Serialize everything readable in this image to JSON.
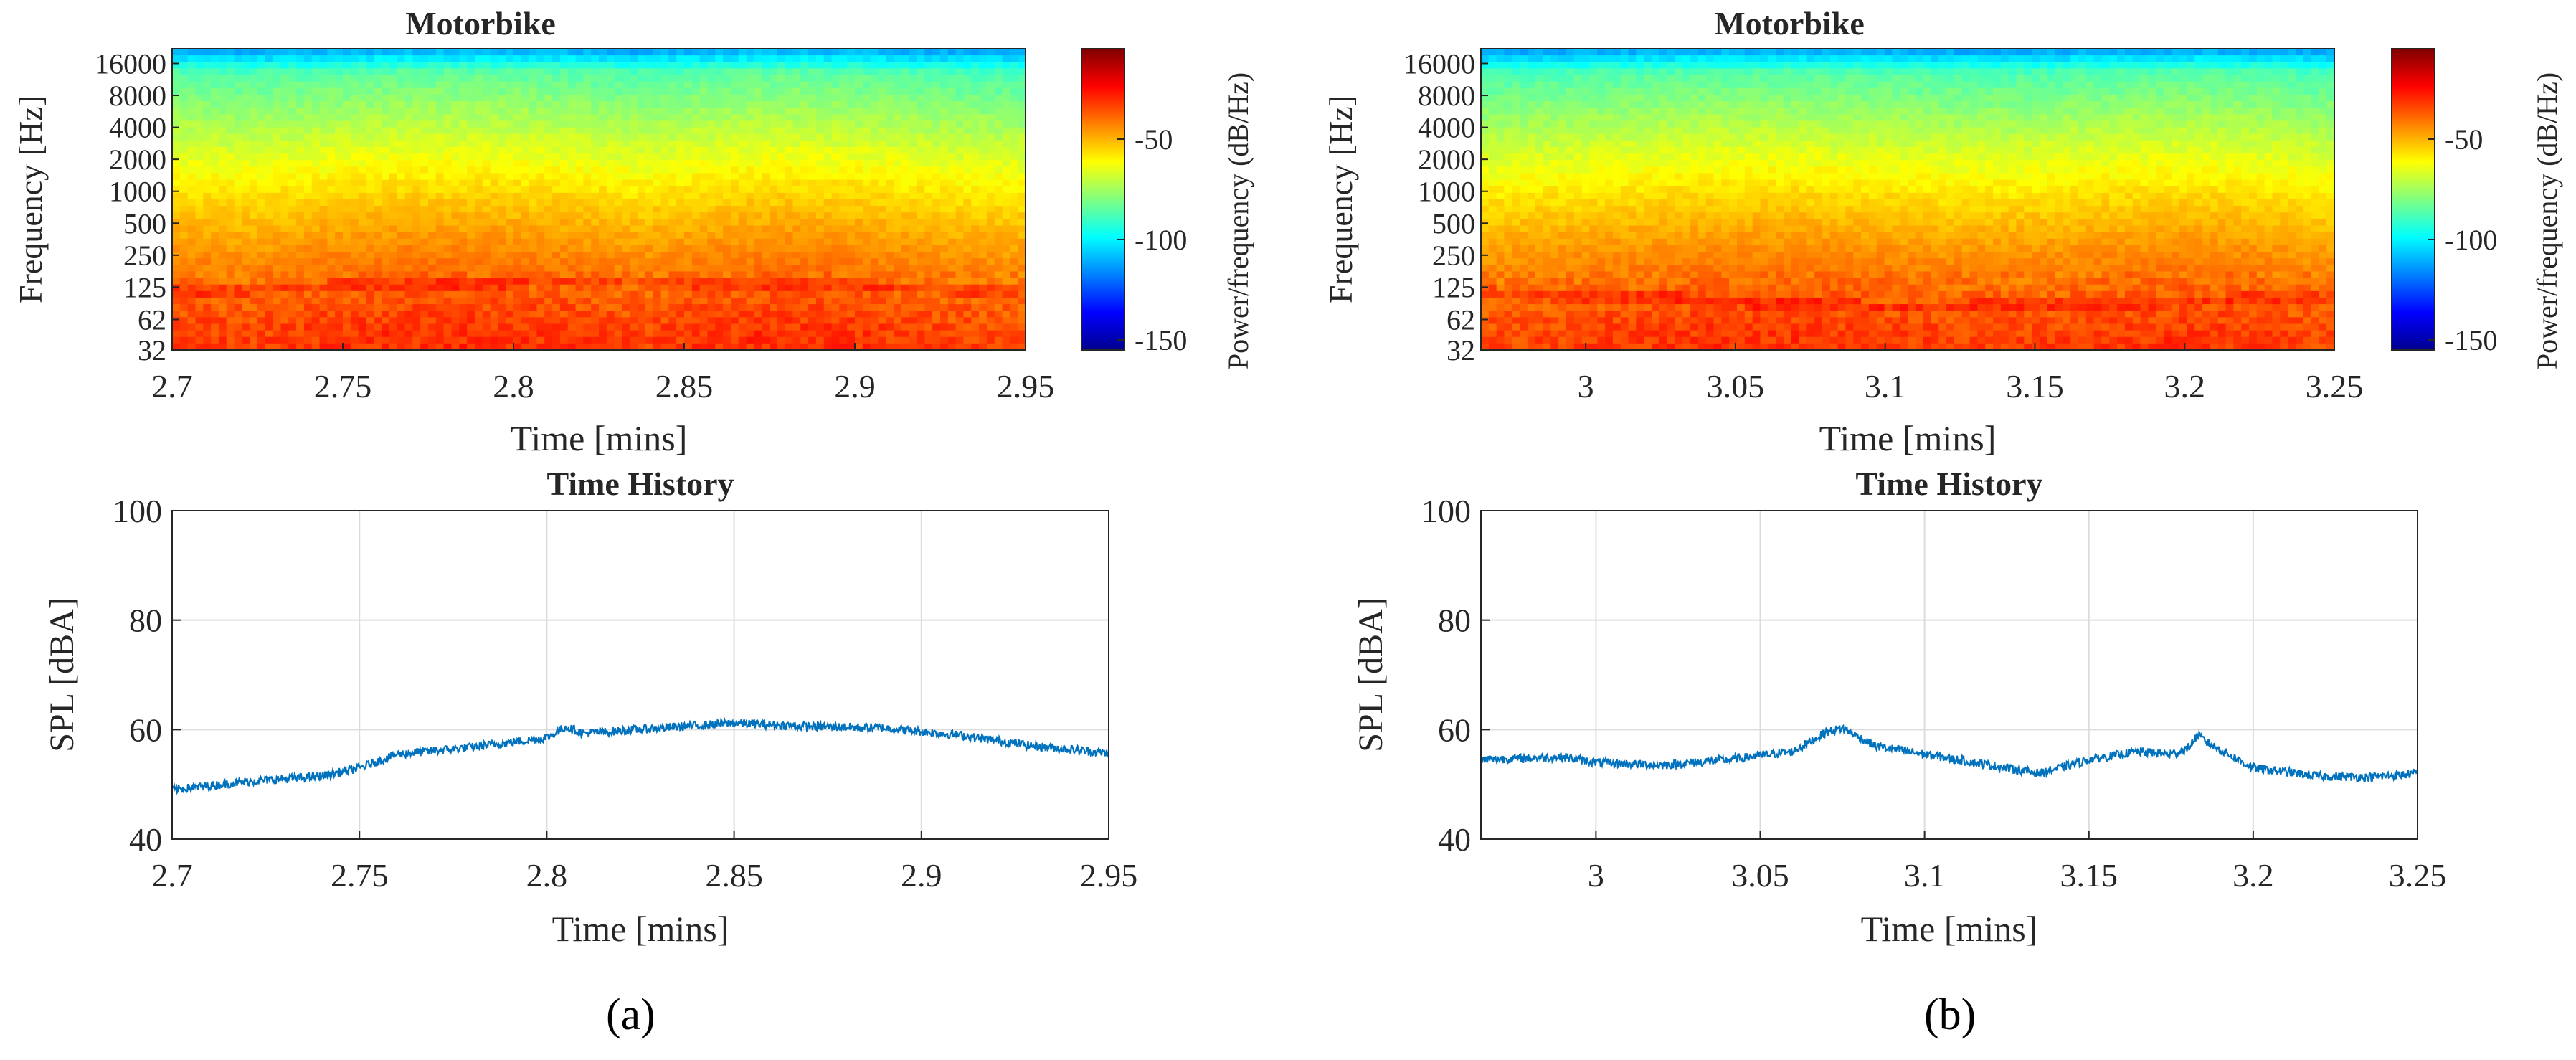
{
  "panel_labels": {
    "a": "(a)",
    "b": "(b)"
  },
  "colors": {
    "line": "#0072BD",
    "grid": "#dcdcdc",
    "axis": "#262626",
    "colormap": [
      "#00008f",
      "#0000ff",
      "#0080ff",
      "#00ffff",
      "#80ff80",
      "#ffff00",
      "#ff8000",
      "#ff0000",
      "#800000"
    ]
  },
  "chart_data": [
    {
      "id": "spec-a",
      "type": "heatmap",
      "title": "Motorbike",
      "xlabel": "Time [mins]",
      "ylabel": "Frequency [Hz]",
      "xlim": [
        2.7,
        2.95
      ],
      "x_ticks": [
        2.7,
        2.75,
        2.8,
        2.85,
        2.9,
        2.95
      ],
      "x_tick_labels": [
        "2.7",
        "2.75",
        "2.8",
        "2.85",
        "2.9",
        "2.95"
      ],
      "y_tick_labels": [
        "32",
        "62",
        "125",
        "250",
        "500",
        "1000",
        "2000",
        "4000",
        "8000",
        "16000"
      ],
      "colorbar": {
        "label": "Power/frequency (dB/Hz)",
        "range": [
          -155,
          -5
        ],
        "ticks": [
          -50,
          -100,
          -150
        ],
        "tick_labels": [
          "-50",
          "-100",
          "-150"
        ]
      },
      "level_db": [
        -32,
        -33,
        -31,
        -30,
        -30,
        -31,
        -33,
        -31,
        -30,
        -31,
        -33,
        -34
      ],
      "harmonic_band_hz": [
        110,
        140,
        110
      ]
    },
    {
      "id": "spec-b",
      "type": "heatmap",
      "title": "Motorbike",
      "xlabel": "Time [mins]",
      "ylabel": "Frequency [Hz]",
      "xlim": [
        2.965,
        3.25
      ],
      "x_ticks": [
        3.0,
        3.05,
        3.1,
        3.15,
        3.2,
        3.25
      ],
      "x_tick_labels": [
        "3",
        "3.05",
        "3.1",
        "3.15",
        "3.2",
        "3.25"
      ],
      "y_tick_labels": [
        "32",
        "62",
        "125",
        "250",
        "500",
        "1000",
        "2000",
        "4000",
        "8000",
        "16000"
      ],
      "colorbar": {
        "label": "Power/frequency (dB/Hz)",
        "range": [
          -155,
          -5
        ],
        "ticks": [
          -50,
          -100,
          -150
        ],
        "tick_labels": [
          "-50",
          "-100",
          "-150"
        ]
      },
      "level_db": [
        -34,
        -33,
        -32,
        -31,
        -31,
        -32,
        -33,
        -33,
        -32,
        -31,
        -32,
        -34
      ],
      "harmonic_band_hz": [
        105,
        75,
        95
      ]
    },
    {
      "id": "hist-a",
      "type": "line",
      "title": "Time History",
      "xlabel": "Time [mins]",
      "ylabel": "SPL [dBA]",
      "xlim": [
        2.7,
        2.95
      ],
      "ylim": [
        40,
        100
      ],
      "x_ticks": [
        2.7,
        2.75,
        2.8,
        2.85,
        2.9,
        2.95
      ],
      "x_tick_labels": [
        "2.7",
        "2.75",
        "2.8",
        "2.85",
        "2.9",
        "2.95"
      ],
      "y_ticks": [
        40,
        60,
        80,
        100
      ],
      "y_tick_labels": [
        "40",
        "60",
        "80",
        "100"
      ],
      "x": [
        2.7,
        2.72,
        2.74,
        2.75,
        2.76,
        2.78,
        2.8,
        2.805,
        2.81,
        2.83,
        2.85,
        2.87,
        2.89,
        2.91,
        2.93,
        2.95
      ],
      "y": [
        49,
        50.5,
        51.5,
        53,
        55.5,
        56.8,
        58.5,
        60.5,
        59.3,
        60.3,
        61.2,
        60.6,
        60.3,
        59,
        57,
        55.7
      ]
    },
    {
      "id": "hist-b",
      "type": "line",
      "title": "Time History",
      "xlabel": "Time [mins]",
      "ylabel": "SPL [dBA]",
      "xlim": [
        2.965,
        3.25
      ],
      "ylim": [
        40,
        100
      ],
      "x_ticks": [
        3.0,
        3.05,
        3.1,
        3.15,
        3.2,
        3.25
      ],
      "x_tick_labels": [
        "3",
        "3.05",
        "3.1",
        "3.15",
        "3.2",
        "3.25"
      ],
      "y_ticks": [
        40,
        60,
        80,
        100
      ],
      "y_tick_labels": [
        "40",
        "60",
        "80",
        "100"
      ],
      "x": [
        2.965,
        2.99,
        3.0,
        3.02,
        3.04,
        3.06,
        3.07,
        3.075,
        3.085,
        3.1,
        3.12,
        3.135,
        3.15,
        3.165,
        3.175,
        3.18,
        3.183,
        3.187,
        3.2,
        3.22,
        3.235,
        3.25
      ],
      "y": [
        54.5,
        55,
        54,
        53.5,
        54.5,
        56,
        59.5,
        60.3,
        57,
        55.5,
        53.5,
        52,
        54.5,
        56,
        55.5,
        56.5,
        59,
        57.3,
        53,
        51.5,
        51.3,
        52
      ]
    }
  ]
}
